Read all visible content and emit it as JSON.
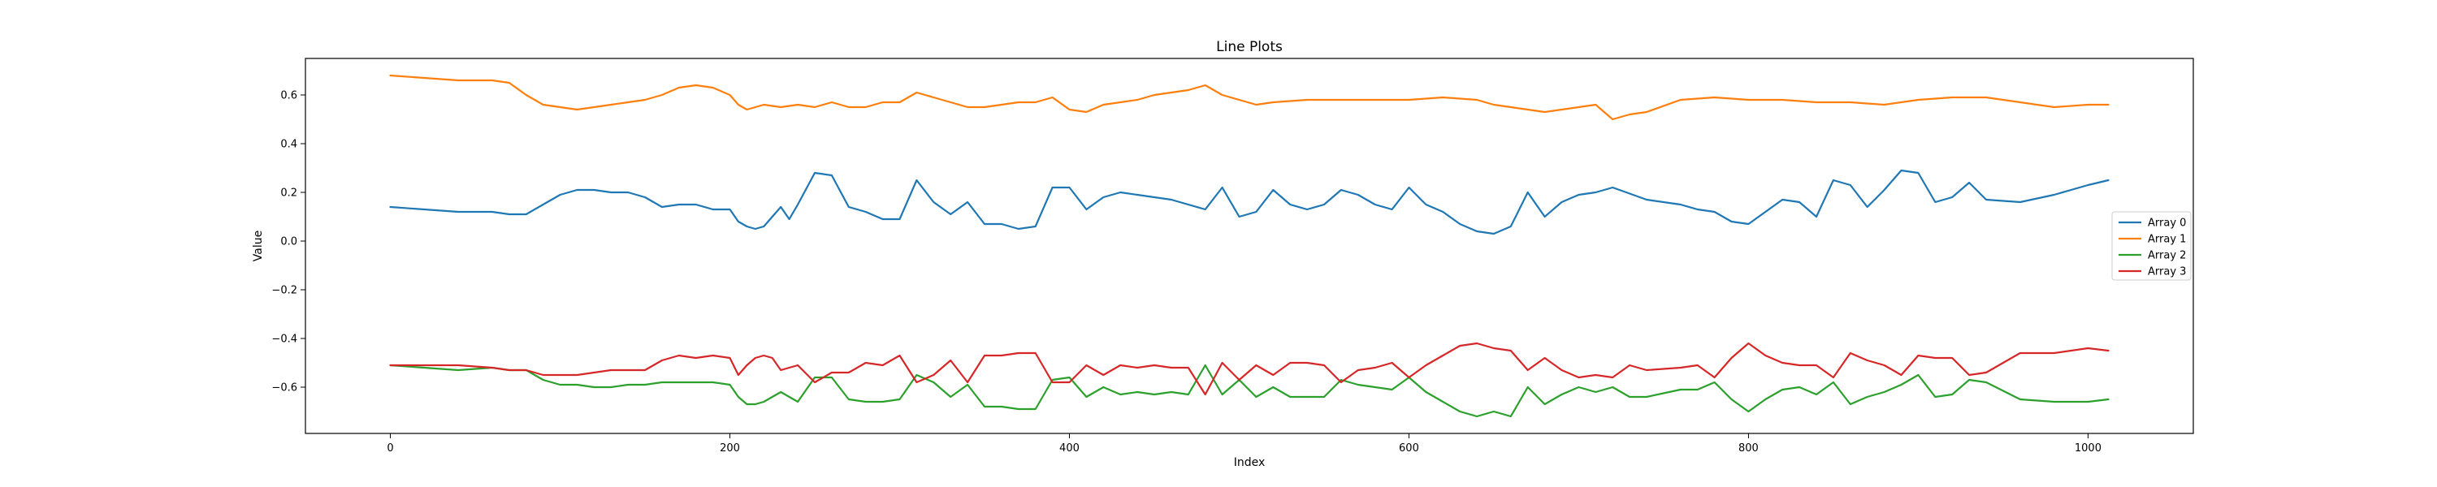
{
  "chart_data": {
    "type": "line",
    "title": "Line Plots",
    "xlabel": "Index",
    "ylabel": "Value",
    "xlim": [
      -50,
      1062
    ],
    "ylim": [
      -0.79,
      0.75
    ],
    "xticks": [
      0,
      200,
      400,
      600,
      800,
      1000
    ],
    "yticks": [
      -0.6,
      -0.4,
      -0.2,
      0.0,
      0.2,
      0.4,
      0.6
    ],
    "xtick_labels": [
      "0",
      "200",
      "400",
      "600",
      "800",
      "1000"
    ],
    "ytick_labels": [
      "−0.6",
      "−0.4",
      "−0.2",
      "0.0",
      "0.2",
      "0.4",
      "0.6"
    ],
    "grid": false,
    "legend_position": "right",
    "series": [
      {
        "name": "Array 0",
        "color": "#1f77b4",
        "x": [
          0,
          20,
          40,
          60,
          70,
          80,
          90,
          100,
          110,
          120,
          130,
          140,
          150,
          160,
          170,
          180,
          190,
          200,
          205,
          210,
          215,
          220,
          225,
          230,
          235,
          240,
          250,
          260,
          270,
          280,
          290,
          300,
          310,
          320,
          330,
          340,
          350,
          360,
          370,
          380,
          390,
          400,
          410,
          420,
          430,
          440,
          460,
          480,
          490,
          500,
          510,
          520,
          530,
          540,
          550,
          560,
          570,
          580,
          590,
          600,
          610,
          620,
          630,
          640,
          650,
          660,
          670,
          680,
          690,
          700,
          710,
          720,
          740,
          760,
          770,
          780,
          790,
          800,
          810,
          820,
          830,
          840,
          850,
          860,
          870,
          880,
          890,
          900,
          910,
          920,
          930,
          940,
          960,
          980,
          1000,
          1012
        ],
        "y": [
          0.14,
          0.13,
          0.12,
          0.12,
          0.11,
          0.11,
          0.15,
          0.19,
          0.21,
          0.21,
          0.2,
          0.2,
          0.18,
          0.14,
          0.15,
          0.15,
          0.13,
          0.13,
          0.08,
          0.06,
          0.05,
          0.06,
          0.1,
          0.14,
          0.09,
          0.15,
          0.28,
          0.27,
          0.14,
          0.12,
          0.09,
          0.09,
          0.25,
          0.16,
          0.11,
          0.16,
          0.07,
          0.07,
          0.05,
          0.06,
          0.22,
          0.22,
          0.13,
          0.18,
          0.2,
          0.19,
          0.17,
          0.13,
          0.22,
          0.1,
          0.12,
          0.21,
          0.15,
          0.13,
          0.15,
          0.21,
          0.19,
          0.15,
          0.13,
          0.22,
          0.15,
          0.12,
          0.07,
          0.04,
          0.03,
          0.06,
          0.2,
          0.1,
          0.16,
          0.19,
          0.2,
          0.22,
          0.17,
          0.15,
          0.13,
          0.12,
          0.08,
          0.07,
          0.12,
          0.17,
          0.16,
          0.1,
          0.25,
          0.23,
          0.14,
          0.21,
          0.29,
          0.28,
          0.16,
          0.18,
          0.24,
          0.17,
          0.16,
          0.19,
          0.23,
          0.25
        ]
      },
      {
        "name": "Array 1",
        "color": "#ff7f0e",
        "x": [
          0,
          20,
          40,
          60,
          70,
          80,
          90,
          100,
          110,
          120,
          130,
          140,
          150,
          160,
          170,
          180,
          190,
          200,
          205,
          210,
          220,
          230,
          240,
          250,
          260,
          270,
          280,
          290,
          300,
          310,
          320,
          330,
          340,
          350,
          360,
          370,
          380,
          390,
          400,
          410,
          420,
          430,
          440,
          450,
          460,
          470,
          480,
          490,
          500,
          510,
          520,
          540,
          560,
          580,
          600,
          620,
          640,
          650,
          660,
          670,
          680,
          690,
          700,
          710,
          720,
          730,
          740,
          760,
          780,
          800,
          820,
          840,
          860,
          880,
          900,
          920,
          940,
          960,
          980,
          1000,
          1012
        ],
        "y": [
          0.68,
          0.67,
          0.66,
          0.66,
          0.65,
          0.6,
          0.56,
          0.55,
          0.54,
          0.55,
          0.56,
          0.57,
          0.58,
          0.6,
          0.63,
          0.64,
          0.63,
          0.6,
          0.56,
          0.54,
          0.56,
          0.55,
          0.56,
          0.55,
          0.57,
          0.55,
          0.55,
          0.57,
          0.57,
          0.61,
          0.59,
          0.57,
          0.55,
          0.55,
          0.56,
          0.57,
          0.57,
          0.59,
          0.54,
          0.53,
          0.56,
          0.57,
          0.58,
          0.6,
          0.61,
          0.62,
          0.64,
          0.6,
          0.58,
          0.56,
          0.57,
          0.58,
          0.58,
          0.58,
          0.58,
          0.59,
          0.58,
          0.56,
          0.55,
          0.54,
          0.53,
          0.54,
          0.55,
          0.56,
          0.5,
          0.52,
          0.53,
          0.58,
          0.59,
          0.58,
          0.58,
          0.57,
          0.57,
          0.56,
          0.58,
          0.59,
          0.59,
          0.57,
          0.55,
          0.56,
          0.56
        ]
      },
      {
        "name": "Array 2",
        "color": "#2ca02c",
        "x": [
          0,
          20,
          40,
          60,
          70,
          80,
          90,
          100,
          110,
          120,
          130,
          140,
          150,
          160,
          170,
          180,
          190,
          200,
          205,
          210,
          215,
          220,
          225,
          230,
          240,
          250,
          260,
          270,
          280,
          290,
          300,
          310,
          320,
          330,
          340,
          350,
          360,
          370,
          380,
          390,
          400,
          410,
          420,
          430,
          440,
          450,
          460,
          470,
          480,
          490,
          500,
          510,
          520,
          530,
          540,
          550,
          560,
          570,
          580,
          590,
          600,
          610,
          620,
          630,
          640,
          650,
          660,
          670,
          680,
          690,
          700,
          710,
          720,
          730,
          740,
          760,
          770,
          780,
          790,
          800,
          810,
          820,
          830,
          840,
          850,
          860,
          870,
          880,
          890,
          900,
          910,
          920,
          930,
          940,
          960,
          980,
          1000,
          1012
        ],
        "y": [
          -0.51,
          -0.52,
          -0.53,
          -0.52,
          -0.53,
          -0.53,
          -0.57,
          -0.59,
          -0.59,
          -0.6,
          -0.6,
          -0.59,
          -0.59,
          -0.58,
          -0.58,
          -0.58,
          -0.58,
          -0.59,
          -0.64,
          -0.67,
          -0.67,
          -0.66,
          -0.64,
          -0.62,
          -0.66,
          -0.56,
          -0.56,
          -0.65,
          -0.66,
          -0.66,
          -0.65,
          -0.55,
          -0.58,
          -0.64,
          -0.59,
          -0.68,
          -0.68,
          -0.69,
          -0.69,
          -0.57,
          -0.56,
          -0.64,
          -0.6,
          -0.63,
          -0.62,
          -0.63,
          -0.62,
          -0.63,
          -0.51,
          -0.63,
          -0.57,
          -0.64,
          -0.6,
          -0.64,
          -0.64,
          -0.64,
          -0.57,
          -0.59,
          -0.6,
          -0.61,
          -0.56,
          -0.62,
          -0.66,
          -0.7,
          -0.72,
          -0.7,
          -0.72,
          -0.6,
          -0.67,
          -0.63,
          -0.6,
          -0.62,
          -0.6,
          -0.64,
          -0.64,
          -0.61,
          -0.61,
          -0.58,
          -0.65,
          -0.7,
          -0.65,
          -0.61,
          -0.6,
          -0.63,
          -0.58,
          -0.67,
          -0.64,
          -0.62,
          -0.59,
          -0.55,
          -0.64,
          -0.63,
          -0.57,
          -0.58,
          -0.65,
          -0.66,
          -0.66,
          -0.65
        ]
      },
      {
        "name": "Array 3",
        "color": "#d62728",
        "x": [
          0,
          20,
          40,
          60,
          70,
          80,
          90,
          100,
          110,
          120,
          130,
          140,
          150,
          160,
          170,
          180,
          190,
          200,
          205,
          210,
          215,
          220,
          225,
          230,
          240,
          250,
          260,
          270,
          280,
          290,
          300,
          310,
          320,
          330,
          340,
          350,
          360,
          370,
          380,
          390,
          400,
          410,
          420,
          430,
          440,
          450,
          460,
          470,
          480,
          490,
          500,
          510,
          520,
          530,
          540,
          550,
          560,
          570,
          580,
          590,
          600,
          610,
          620,
          630,
          640,
          650,
          660,
          670,
          680,
          690,
          700,
          710,
          720,
          730,
          740,
          760,
          770,
          780,
          790,
          800,
          810,
          820,
          830,
          840,
          850,
          860,
          870,
          880,
          890,
          900,
          910,
          920,
          930,
          940,
          960,
          980,
          1000,
          1012
        ],
        "y": [
          -0.51,
          -0.51,
          -0.51,
          -0.52,
          -0.53,
          -0.53,
          -0.55,
          -0.55,
          -0.55,
          -0.54,
          -0.53,
          -0.53,
          -0.53,
          -0.49,
          -0.47,
          -0.48,
          -0.47,
          -0.48,
          -0.55,
          -0.51,
          -0.48,
          -0.47,
          -0.48,
          -0.53,
          -0.51,
          -0.58,
          -0.54,
          -0.54,
          -0.5,
          -0.51,
          -0.47,
          -0.58,
          -0.55,
          -0.49,
          -0.58,
          -0.47,
          -0.47,
          -0.46,
          -0.46,
          -0.58,
          -0.58,
          -0.51,
          -0.55,
          -0.51,
          -0.52,
          -0.51,
          -0.52,
          -0.52,
          -0.63,
          -0.5,
          -0.57,
          -0.51,
          -0.55,
          -0.5,
          -0.5,
          -0.51,
          -0.58,
          -0.53,
          -0.52,
          -0.5,
          -0.56,
          -0.51,
          -0.47,
          -0.43,
          -0.42,
          -0.44,
          -0.45,
          -0.53,
          -0.48,
          -0.53,
          -0.56,
          -0.55,
          -0.56,
          -0.51,
          -0.53,
          -0.52,
          -0.51,
          -0.56,
          -0.48,
          -0.42,
          -0.47,
          -0.5,
          -0.51,
          -0.51,
          -0.56,
          -0.46,
          -0.49,
          -0.51,
          -0.55,
          -0.47,
          -0.48,
          -0.48,
          -0.55,
          -0.54,
          -0.46,
          -0.46,
          -0.44,
          -0.45
        ]
      }
    ]
  }
}
